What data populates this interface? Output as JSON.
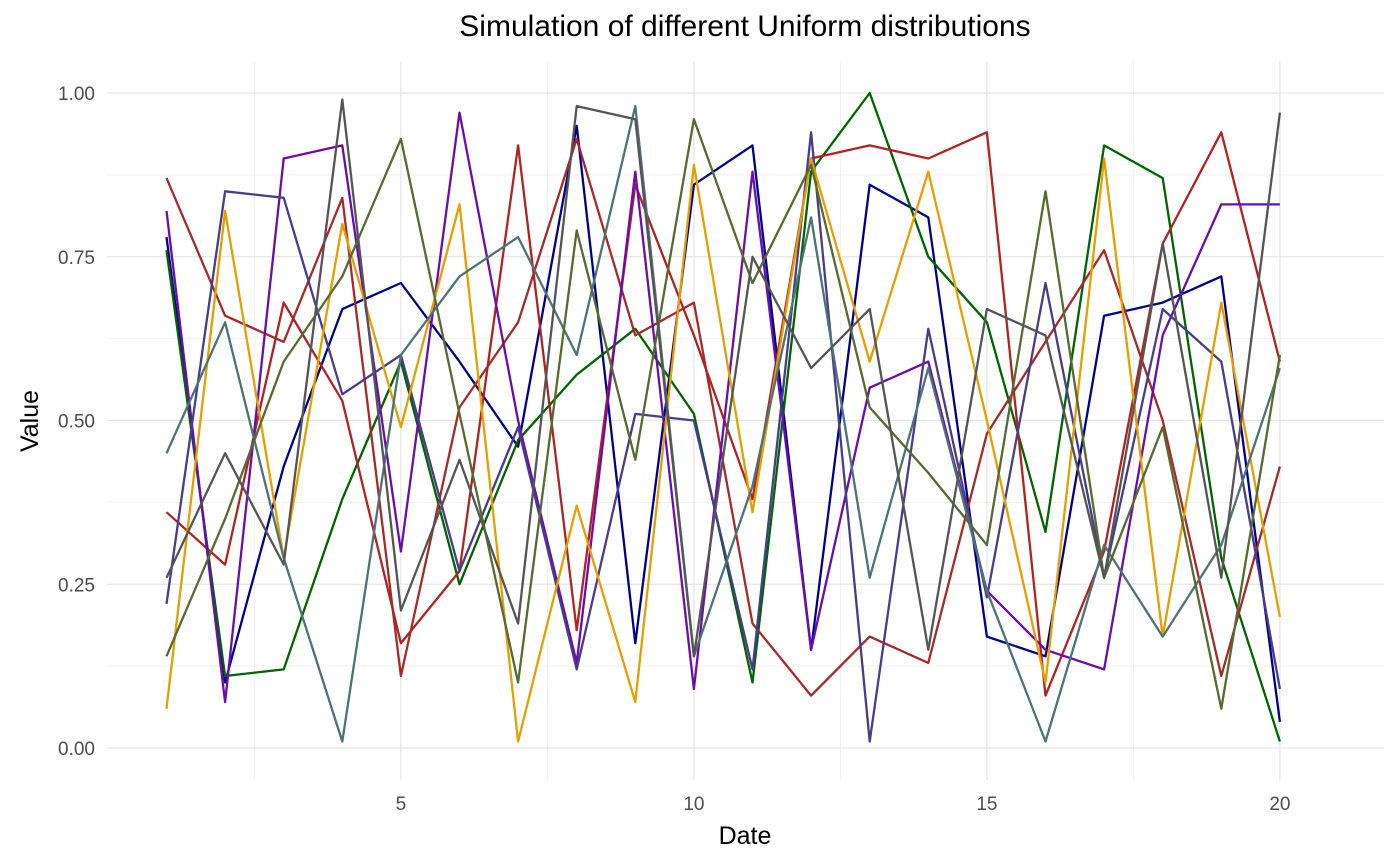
{
  "chart_data": {
    "type": "line",
    "title": "Simulation of different Uniform distributions",
    "xlabel": "Date",
    "ylabel": "Value",
    "xlim": [
      1,
      20
    ],
    "ylim": [
      0,
      1
    ],
    "xticks": [
      5,
      10,
      15,
      20
    ],
    "xtick_labels": [
      "5",
      "10",
      "15",
      "20"
    ],
    "yticks": [
      0,
      0.25,
      0.5,
      0.75,
      1
    ],
    "ytick_labels": [
      "0.00",
      "0.25",
      "0.50",
      "0.75",
      "1.00"
    ],
    "grid": true,
    "legend": "none",
    "x": [
      1,
      2,
      3,
      4,
      5,
      6,
      7,
      8,
      9,
      10,
      11,
      12,
      13,
      14,
      15,
      16,
      17,
      18,
      19,
      20
    ],
    "series": [
      {
        "color": "#00008B",
        "values": [
          0.78,
          0.1,
          0.43,
          0.67,
          0.71,
          0.59,
          0.46,
          0.95,
          0.16,
          0.86,
          0.92,
          0.15,
          0.86,
          0.81,
          0.17,
          0.14,
          0.66,
          0.68,
          0.72,
          0.04
        ]
      },
      {
        "color": "#006400",
        "values": [
          0.76,
          0.11,
          0.12,
          0.38,
          0.59,
          0.25,
          0.47,
          0.57,
          0.64,
          0.51,
          0.1,
          0.88,
          1.0,
          0.75,
          0.65,
          0.33,
          0.92,
          0.87,
          0.29,
          0.01
        ]
      },
      {
        "color": "#A52A2A",
        "values": [
          0.87,
          0.66,
          0.62,
          0.84,
          0.11,
          0.52,
          0.65,
          0.93,
          0.63,
          0.68,
          0.19,
          0.08,
          0.17,
          0.13,
          0.48,
          0.62,
          0.76,
          0.5,
          0.11,
          0.43
        ]
      },
      {
        "color": "#B22222",
        "values": [
          0.36,
          0.28,
          0.68,
          0.53,
          0.16,
          0.27,
          0.92,
          0.18,
          0.86,
          0.63,
          0.38,
          0.9,
          0.92,
          0.9,
          0.94,
          0.08,
          0.3,
          0.77,
          0.94,
          0.59
        ]
      },
      {
        "color": "#6A0DAD",
        "values": [
          0.82,
          0.07,
          0.9,
          0.92,
          0.3,
          0.97,
          0.5,
          0.13,
          0.88,
          0.09,
          0.88,
          0.15,
          0.55,
          0.59,
          0.24,
          0.15,
          0.12,
          0.63,
          0.83,
          0.83
        ]
      },
      {
        "color": "#483D8B",
        "values": [
          0.22,
          0.85,
          0.84,
          0.54,
          0.6,
          0.27,
          0.49,
          0.12,
          0.51,
          0.5,
          0.12,
          0.94,
          0.01,
          0.64,
          0.23,
          0.71,
          0.26,
          0.67,
          0.59,
          0.09
        ]
      },
      {
        "color": "#E69F00",
        "values": [
          0.06,
          0.82,
          0.29,
          0.8,
          0.49,
          0.83,
          0.01,
          0.37,
          0.07,
          0.89,
          0.36,
          0.9,
          0.59,
          0.88,
          0.5,
          0.1,
          0.9,
          0.17,
          0.68,
          0.2
        ]
      },
      {
        "color": "#4E7375",
        "values": [
          0.45,
          0.65,
          0.29,
          0.01,
          0.6,
          0.72,
          0.78,
          0.6,
          0.98,
          0.14,
          0.4,
          0.81,
          0.26,
          0.58,
          0.24,
          0.01,
          0.31,
          0.17,
          0.31,
          0.58
        ]
      },
      {
        "color": "#556B2F",
        "values": [
          0.14,
          0.35,
          0.59,
          0.72,
          0.93,
          0.51,
          0.1,
          0.79,
          0.44,
          0.96,
          0.71,
          0.89,
          0.52,
          0.42,
          0.31,
          0.85,
          0.26,
          0.49,
          0.06,
          0.6
        ]
      },
      {
        "color": "#555555",
        "values": [
          0.26,
          0.45,
          0.28,
          0.99,
          0.21,
          0.44,
          0.19,
          0.98,
          0.96,
          0.14,
          0.75,
          0.58,
          0.67,
          0.15,
          0.67,
          0.63,
          0.26,
          0.77,
          0.26,
          0.97
        ]
      }
    ]
  }
}
